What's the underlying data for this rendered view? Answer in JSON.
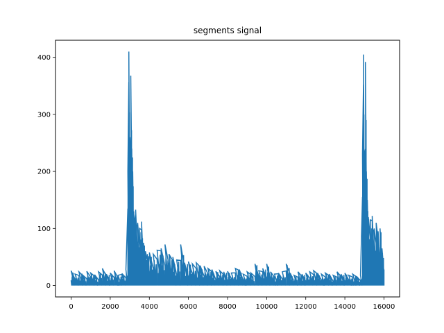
{
  "chart_data": {
    "type": "line",
    "title": "segments signal",
    "xlabel": "",
    "ylabel": "",
    "xlim": [
      -800,
      16800
    ],
    "ylim": [
      -20,
      430
    ],
    "x_ticks": [
      0,
      2000,
      4000,
      6000,
      8000,
      10000,
      12000,
      14000,
      16000
    ],
    "x_tick_labels": [
      "0",
      "2000",
      "4000",
      "6000",
      "8000",
      "10000",
      "12000",
      "14000",
      "16000"
    ],
    "y_ticks": [
      0,
      100,
      200,
      300,
      400
    ],
    "y_tick_labels": [
      "0",
      "100",
      "200",
      "300",
      "400"
    ],
    "grid": false,
    "legend": "none",
    "series": [
      {
        "color": "#1f77b4",
        "x": [
          0,
          200,
          400,
          600,
          800,
          1000,
          1200,
          1400,
          1600,
          1800,
          2000,
          2200,
          2400,
          2600,
          2800,
          2900,
          2950,
          3000,
          3050,
          3100,
          3150,
          3200,
          3250,
          3300,
          3400,
          3500,
          3600,
          3700,
          3800,
          3900,
          4000,
          4200,
          4400,
          4600,
          4800,
          5000,
          5200,
          5400,
          5600,
          5800,
          6000,
          6200,
          6400,
          6600,
          6800,
          7000,
          7200,
          7400,
          7600,
          7800,
          8000,
          8200,
          8400,
          8600,
          8800,
          9000,
          9200,
          9400,
          9600,
          9800,
          10000,
          10200,
          10400,
          10600,
          10800,
          11000,
          11200,
          11400,
          11600,
          11800,
          12000,
          12200,
          12400,
          12600,
          12800,
          13000,
          13200,
          13400,
          13600,
          13800,
          14000,
          14200,
          14400,
          14600,
          14800,
          14900,
          14950,
          15000,
          15050,
          15100,
          15150,
          15200,
          15300,
          15400,
          15500,
          15600,
          15700,
          15800,
          15900,
          16000
        ],
        "y": [
          26,
          20,
          24,
          18,
          25,
          22,
          19,
          24,
          30,
          20,
          22,
          26,
          18,
          21,
          28,
          200,
          410,
          260,
          368,
          240,
          200,
          130,
          115,
          133,
          110,
          100,
          112,
          75,
          60,
          55,
          58,
          55,
          62,
          65,
          72,
          55,
          50,
          45,
          72,
          40,
          42,
          38,
          40,
          35,
          34,
          30,
          28,
          25,
          26,
          24,
          25,
          22,
          30,
          28,
          20,
          24,
          22,
          38,
          26,
          30,
          38,
          24,
          20,
          22,
          24,
          38,
          22,
          18,
          24,
          20,
          22,
          24,
          26,
          22,
          20,
          22,
          20,
          18,
          24,
          20,
          22,
          18,
          20,
          16,
          18,
          230,
          405,
          230,
          392,
          200,
          150,
          120,
          115,
          122,
          100,
          110,
          95,
          100,
          65,
          28
        ]
      }
    ]
  }
}
